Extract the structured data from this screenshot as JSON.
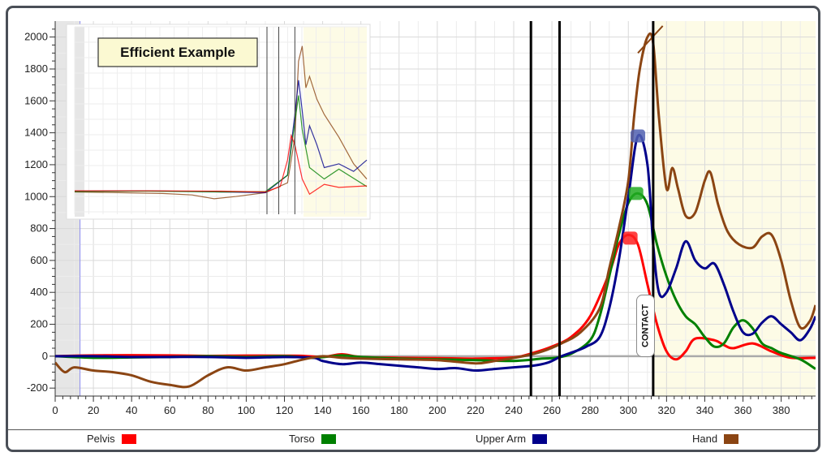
{
  "chart_data": {
    "type": "line",
    "xlim": [
      0,
      398
    ],
    "ylim": [
      -250,
      2100
    ],
    "x_ticks": [
      0,
      20,
      40,
      60,
      80,
      100,
      120,
      140,
      160,
      180,
      200,
      220,
      240,
      260,
      280,
      300,
      320,
      340,
      360,
      380
    ],
    "y_ticks": [
      -200,
      0,
      200,
      400,
      600,
      800,
      1000,
      1200,
      1400,
      1600,
      1800,
      2000
    ],
    "grid": true,
    "vertical_lines": [
      249,
      264,
      313
    ],
    "series": [
      {
        "name": "Pelvis",
        "color": "#ff0000",
        "points": [
          [
            0,
            0
          ],
          [
            20,
            5
          ],
          [
            40,
            6
          ],
          [
            60,
            5
          ],
          [
            80,
            2
          ],
          [
            100,
            4
          ],
          [
            120,
            3
          ],
          [
            130,
            2
          ],
          [
            140,
            -5
          ],
          [
            150,
            12
          ],
          [
            160,
            -5
          ],
          [
            180,
            -10
          ],
          [
            200,
            -12
          ],
          [
            220,
            -15
          ],
          [
            240,
            -8
          ],
          [
            250,
            20
          ],
          [
            260,
            60
          ],
          [
            270,
            120
          ],
          [
            280,
            250
          ],
          [
            290,
            520
          ],
          [
            295,
            700
          ],
          [
            300,
            760
          ],
          [
            305,
            700
          ],
          [
            310,
            450
          ],
          [
            315,
            200
          ],
          [
            320,
            30
          ],
          [
            325,
            -20
          ],
          [
            330,
            30
          ],
          [
            335,
            110
          ],
          [
            345,
            100
          ],
          [
            350,
            70
          ],
          [
            355,
            50
          ],
          [
            365,
            80
          ],
          [
            375,
            30
          ],
          [
            385,
            -10
          ],
          [
            398,
            -10
          ]
        ]
      },
      {
        "name": "Torso",
        "color": "#008000",
        "points": [
          [
            0,
            0
          ],
          [
            20,
            -10
          ],
          [
            40,
            -8
          ],
          [
            60,
            -5
          ],
          [
            80,
            0
          ],
          [
            100,
            -5
          ],
          [
            120,
            0
          ],
          [
            135,
            -10
          ],
          [
            150,
            5
          ],
          [
            160,
            -5
          ],
          [
            180,
            -15
          ],
          [
            200,
            -20
          ],
          [
            220,
            -25
          ],
          [
            240,
            -30
          ],
          [
            255,
            -15
          ],
          [
            262,
            -10
          ],
          [
            270,
            15
          ],
          [
            280,
            100
          ],
          [
            285,
            250
          ],
          [
            290,
            500
          ],
          [
            295,
            760
          ],
          [
            300,
            960
          ],
          [
            305,
            1020
          ],
          [
            310,
            950
          ],
          [
            315,
            700
          ],
          [
            320,
            500
          ],
          [
            325,
            350
          ],
          [
            330,
            250
          ],
          [
            335,
            200
          ],
          [
            340,
            120
          ],
          [
            345,
            60
          ],
          [
            350,
            80
          ],
          [
            355,
            180
          ],
          [
            360,
            225
          ],
          [
            365,
            175
          ],
          [
            370,
            80
          ],
          [
            375,
            50
          ],
          [
            380,
            20
          ],
          [
            390,
            -20
          ],
          [
            398,
            -80
          ]
        ]
      },
      {
        "name": "Upper Arm",
        "color": "#00008b",
        "points": [
          [
            0,
            0
          ],
          [
            20,
            0
          ],
          [
            40,
            -5
          ],
          [
            60,
            -5
          ],
          [
            80,
            -5
          ],
          [
            100,
            -10
          ],
          [
            120,
            -5
          ],
          [
            135,
            -10
          ],
          [
            140,
            -30
          ],
          [
            150,
            -50
          ],
          [
            160,
            -40
          ],
          [
            170,
            -50
          ],
          [
            180,
            -60
          ],
          [
            190,
            -70
          ],
          [
            200,
            -80
          ],
          [
            210,
            -75
          ],
          [
            220,
            -90
          ],
          [
            230,
            -80
          ],
          [
            240,
            -70
          ],
          [
            250,
            -60
          ],
          [
            258,
            -40
          ],
          [
            265,
            0
          ],
          [
            272,
            30
          ],
          [
            278,
            60
          ],
          [
            285,
            120
          ],
          [
            290,
            300
          ],
          [
            295,
            600
          ],
          [
            300,
            1000
          ],
          [
            305,
            1380
          ],
          [
            310,
            1200
          ],
          [
            313,
            700
          ],
          [
            316,
            400
          ],
          [
            320,
            400
          ],
          [
            325,
            550
          ],
          [
            330,
            720
          ],
          [
            335,
            600
          ],
          [
            340,
            550
          ],
          [
            345,
            580
          ],
          [
            350,
            450
          ],
          [
            355,
            280
          ],
          [
            360,
            150
          ],
          [
            365,
            140
          ],
          [
            370,
            210
          ],
          [
            375,
            250
          ],
          [
            380,
            200
          ],
          [
            385,
            150
          ],
          [
            390,
            100
          ],
          [
            395,
            170
          ],
          [
            398,
            250
          ]
        ]
      },
      {
        "name": "Hand",
        "color": "#8b4513",
        "points": [
          [
            0,
            -40
          ],
          [
            5,
            -100
          ],
          [
            10,
            -70
          ],
          [
            20,
            -90
          ],
          [
            30,
            -100
          ],
          [
            40,
            -120
          ],
          [
            50,
            -160
          ],
          [
            60,
            -180
          ],
          [
            70,
            -190
          ],
          [
            80,
            -120
          ],
          [
            90,
            -70
          ],
          [
            100,
            -90
          ],
          [
            110,
            -70
          ],
          [
            120,
            -50
          ],
          [
            130,
            -20
          ],
          [
            140,
            0
          ],
          [
            150,
            -10
          ],
          [
            160,
            -15
          ],
          [
            180,
            -20
          ],
          [
            200,
            -25
          ],
          [
            220,
            -45
          ],
          [
            230,
            -30
          ],
          [
            245,
            0
          ],
          [
            255,
            30
          ],
          [
            265,
            80
          ],
          [
            275,
            150
          ],
          [
            285,
            300
          ],
          [
            290,
            550
          ],
          [
            295,
            800
          ],
          [
            300,
            1100
          ],
          [
            303,
            1500
          ],
          [
            306,
            1800
          ],
          [
            310,
            2000
          ],
          [
            313,
            1960
          ],
          [
            316,
            1500
          ],
          [
            320,
            1050
          ],
          [
            323,
            1180
          ],
          [
            326,
            1050
          ],
          [
            330,
            880
          ],
          [
            335,
            900
          ],
          [
            340,
            1100
          ],
          [
            343,
            1150
          ],
          [
            347,
            950
          ],
          [
            352,
            780
          ],
          [
            358,
            700
          ],
          [
            365,
            680
          ],
          [
            370,
            750
          ],
          [
            375,
            760
          ],
          [
            380,
            600
          ],
          [
            385,
            350
          ],
          [
            390,
            180
          ],
          [
            395,
            220
          ],
          [
            398,
            320
          ]
        ]
      }
    ],
    "annotations": {
      "contact_label": "CONTACT"
    },
    "inset": {
      "title": "Efficient Example"
    }
  },
  "legend": [
    {
      "name": "Pelvis",
      "color": "#ff0000"
    },
    {
      "name": "Torso",
      "color": "#008000"
    },
    {
      "name": "Upper Arm",
      "color": "#00008b"
    },
    {
      "name": "Hand",
      "color": "#8b4513"
    }
  ]
}
